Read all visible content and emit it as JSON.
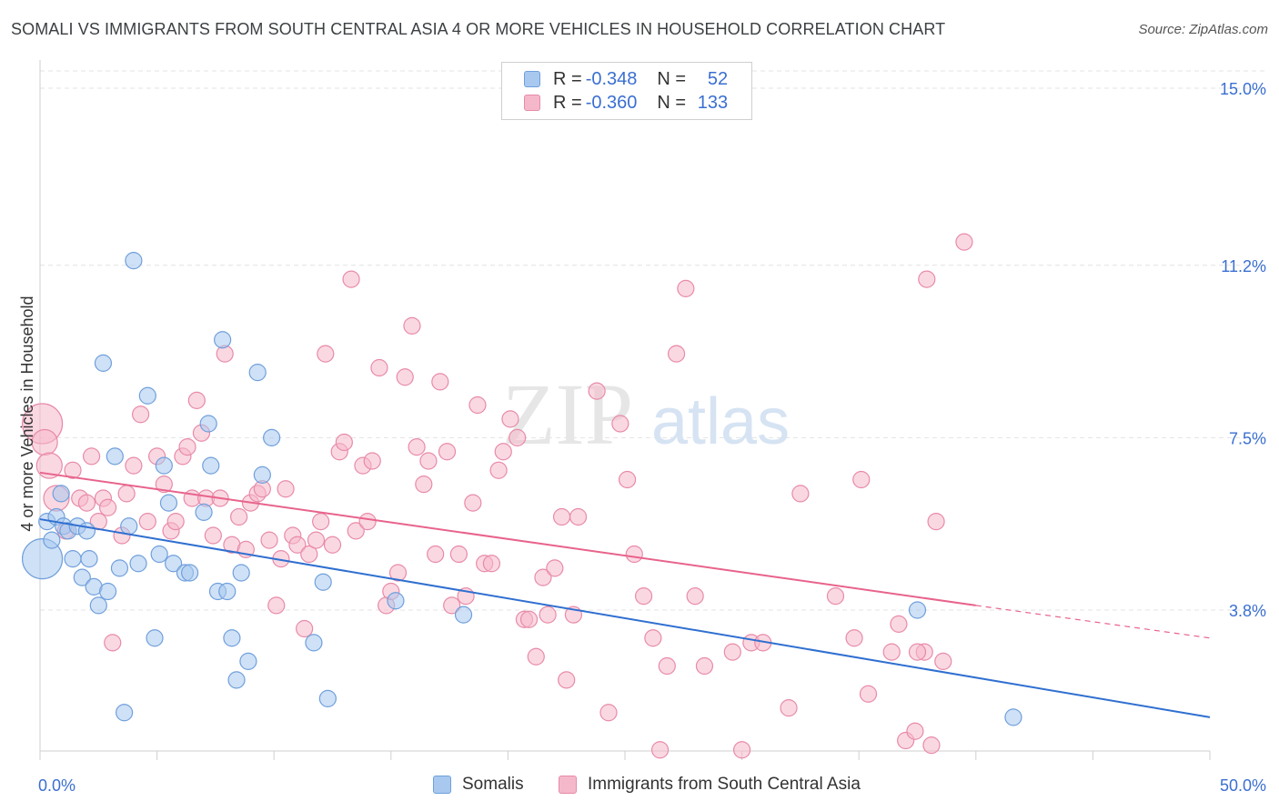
{
  "title": "SOMALI VS IMMIGRANTS FROM SOUTH CENTRAL ASIA 4 OR MORE VEHICLES IN HOUSEHOLD CORRELATION CHART",
  "source": "Source: ZipAtlas.com",
  "legend": {
    "r_label": "R =",
    "n_label": "N =",
    "rows": [
      {
        "r": "-0.348",
        "n": "52",
        "color": "#a8c8ef",
        "border": "#6f9fdc"
      },
      {
        "r": "-0.360",
        "n": "133",
        "color": "#f5b8cb",
        "border": "#e88aa8"
      }
    ]
  },
  "watermark": {
    "zip": "ZIP",
    "atlas": "atlas"
  },
  "colors": {
    "blue_fill": "#a8c8ef",
    "blue_stroke": "#6f9fdc",
    "blue_line": "#2f6fd0",
    "pink_fill": "#f5b8cb",
    "pink_stroke": "#e88aa8",
    "pink_line": "#e8638c",
    "tick_label": "#3a6fd1"
  },
  "chart_data": {
    "type": "scatter",
    "title": "SOMALI VS IMMIGRANTS FROM SOUTH CENTRAL ASIA 4 OR MORE VEHICLES IN HOUSEHOLD CORRELATION CHART",
    "xlabel": "",
    "ylabel": "4 or more Vehicles in Household",
    "xlim": [
      0,
      50
    ],
    "ylim": [
      0.5,
      15.5
    ],
    "x_tick_labels": [
      {
        "value": 0,
        "label": "0.0%"
      },
      {
        "value": 50,
        "label": "50.0%"
      }
    ],
    "y_ticks": [
      {
        "value": 3.8,
        "label": "3.8%"
      },
      {
        "value": 7.5,
        "label": "7.5%"
      },
      {
        "value": 11.2,
        "label": "11.2%"
      },
      {
        "value": 15.0,
        "label": "15.0%"
      }
    ],
    "grid": true,
    "legend_position": "top-center",
    "series": [
      {
        "name": "Somalis",
        "r": -0.348,
        "n": 52,
        "trend": {
          "x0": 0,
          "y0": 5.75,
          "x1": 50,
          "y1": 1.5
        },
        "points": [
          [
            0.1,
            4.9,
            3
          ],
          [
            0.3,
            5.7,
            1
          ],
          [
            0.5,
            5.3,
            1
          ],
          [
            0.7,
            5.8,
            1
          ],
          [
            0.9,
            6.3,
            1
          ],
          [
            1.0,
            5.6,
            1
          ],
          [
            1.2,
            5.5,
            1
          ],
          [
            1.4,
            4.9,
            1
          ],
          [
            1.6,
            5.6,
            1
          ],
          [
            1.8,
            4.5,
            1
          ],
          [
            2.0,
            5.5,
            1
          ],
          [
            2.1,
            4.9,
            1
          ],
          [
            2.3,
            4.3,
            1
          ],
          [
            2.5,
            3.9,
            1
          ],
          [
            2.7,
            9.1,
            1
          ],
          [
            2.9,
            4.2,
            1
          ],
          [
            3.2,
            7.1,
            1
          ],
          [
            3.4,
            4.7,
            1
          ],
          [
            3.6,
            1.6,
            1
          ],
          [
            3.8,
            5.6,
            1
          ],
          [
            4.0,
            11.3,
            1
          ],
          [
            4.2,
            4.8,
            1
          ],
          [
            4.6,
            8.4,
            1
          ],
          [
            4.9,
            3.2,
            1
          ],
          [
            5.1,
            5.0,
            1
          ],
          [
            5.3,
            6.9,
            1
          ],
          [
            5.5,
            6.1,
            1
          ],
          [
            5.7,
            4.8,
            1
          ],
          [
            6.2,
            4.6,
            1
          ],
          [
            6.4,
            4.6,
            1
          ],
          [
            7.0,
            5.9,
            1
          ],
          [
            7.2,
            7.8,
            1
          ],
          [
            7.3,
            6.9,
            1
          ],
          [
            7.6,
            4.2,
            1
          ],
          [
            7.8,
            9.6,
            1
          ],
          [
            8.0,
            4.2,
            1
          ],
          [
            8.2,
            3.2,
            1
          ],
          [
            8.4,
            2.3,
            1
          ],
          [
            8.6,
            4.6,
            1
          ],
          [
            8.9,
            2.7,
            1
          ],
          [
            9.3,
            8.9,
            1
          ],
          [
            9.5,
            6.7,
            1
          ],
          [
            9.9,
            7.5,
            1
          ],
          [
            11.7,
            3.1,
            1
          ],
          [
            12.1,
            4.4,
            1
          ],
          [
            12.3,
            1.9,
            1
          ],
          [
            15.2,
            4.0,
            1
          ],
          [
            18.1,
            3.7,
            1
          ],
          [
            37.5,
            3.8,
            1
          ],
          [
            41.6,
            1.5,
            1
          ]
        ]
      },
      {
        "name": "Immigrants from South Central Asia",
        "r": -0.36,
        "n": 133,
        "trend": {
          "x0": 0,
          "y0": 6.75,
          "x1": 40,
          "y1": 3.9,
          "dash_x1": 50,
          "dash_y1": 3.2
        },
        "points": [
          [
            0.1,
            7.8,
            3
          ],
          [
            0.2,
            7.4,
            2
          ],
          [
            0.4,
            6.9,
            2
          ],
          [
            0.7,
            6.2,
            2
          ],
          [
            1.1,
            5.5,
            1
          ],
          [
            1.4,
            6.8,
            1
          ],
          [
            1.7,
            6.2,
            1
          ],
          [
            2.0,
            6.1,
            1
          ],
          [
            2.2,
            7.1,
            1
          ],
          [
            2.5,
            5.7,
            1
          ],
          [
            2.7,
            6.2,
            1
          ],
          [
            2.9,
            6.0,
            1
          ],
          [
            3.1,
            3.1,
            1
          ],
          [
            3.5,
            5.4,
            1
          ],
          [
            3.7,
            6.3,
            1
          ],
          [
            4.0,
            6.9,
            1
          ],
          [
            4.3,
            8.0,
            1
          ],
          [
            4.6,
            5.7,
            1
          ],
          [
            5.0,
            7.1,
            1
          ],
          [
            5.3,
            6.5,
            1
          ],
          [
            5.6,
            5.5,
            1
          ],
          [
            5.8,
            5.7,
            1
          ],
          [
            6.1,
            7.1,
            1
          ],
          [
            6.3,
            7.3,
            1
          ],
          [
            6.5,
            6.2,
            1
          ],
          [
            6.7,
            8.3,
            1
          ],
          [
            6.9,
            7.6,
            1
          ],
          [
            7.1,
            6.2,
            1
          ],
          [
            7.4,
            5.4,
            1
          ],
          [
            7.7,
            6.2,
            1
          ],
          [
            7.9,
            9.3,
            1
          ],
          [
            8.2,
            5.2,
            1
          ],
          [
            8.5,
            5.8,
            1
          ],
          [
            8.8,
            5.1,
            1
          ],
          [
            9.0,
            6.1,
            1
          ],
          [
            9.3,
            6.3,
            1
          ],
          [
            9.5,
            6.4,
            1
          ],
          [
            9.8,
            5.3,
            1
          ],
          [
            10.1,
            3.9,
            1
          ],
          [
            10.3,
            4.9,
            1
          ],
          [
            10.5,
            6.4,
            1
          ],
          [
            10.8,
            5.4,
            1
          ],
          [
            11.0,
            5.2,
            1
          ],
          [
            11.3,
            3.4,
            1
          ],
          [
            11.5,
            5.0,
            1
          ],
          [
            11.8,
            5.3,
            1
          ],
          [
            12.0,
            5.7,
            1
          ],
          [
            12.2,
            9.3,
            1
          ],
          [
            12.5,
            5.2,
            1
          ],
          [
            12.8,
            7.2,
            1
          ],
          [
            13.0,
            7.4,
            1
          ],
          [
            13.3,
            10.9,
            1
          ],
          [
            13.5,
            5.5,
            1
          ],
          [
            13.8,
            6.9,
            1
          ],
          [
            14.0,
            5.7,
            1
          ],
          [
            14.2,
            7.0,
            1
          ],
          [
            14.5,
            9.0,
            1
          ],
          [
            14.8,
            3.9,
            1
          ],
          [
            15.0,
            4.2,
            1
          ],
          [
            15.3,
            4.6,
            1
          ],
          [
            15.6,
            8.8,
            1
          ],
          [
            15.9,
            9.9,
            1
          ],
          [
            16.1,
            7.3,
            1
          ],
          [
            16.4,
            6.5,
            1
          ],
          [
            16.6,
            7.0,
            1
          ],
          [
            16.9,
            5.0,
            1
          ],
          [
            17.1,
            8.7,
            1
          ],
          [
            17.4,
            7.2,
            1
          ],
          [
            17.6,
            3.9,
            1
          ],
          [
            17.9,
            5.0,
            1
          ],
          [
            18.2,
            4.1,
            1
          ],
          [
            18.5,
            6.1,
            1
          ],
          [
            18.7,
            8.2,
            1
          ],
          [
            19.0,
            4.8,
            1
          ],
          [
            19.3,
            4.8,
            1
          ],
          [
            19.6,
            6.8,
            1
          ],
          [
            19.8,
            7.2,
            1
          ],
          [
            20.1,
            7.9,
            1
          ],
          [
            20.4,
            7.5,
            1
          ],
          [
            20.7,
            3.6,
            1
          ],
          [
            20.9,
            3.6,
            1
          ],
          [
            21.2,
            2.8,
            1
          ],
          [
            21.5,
            4.5,
            1
          ],
          [
            21.7,
            3.7,
            1
          ],
          [
            22.0,
            4.7,
            1
          ],
          [
            22.3,
            5.8,
            1
          ],
          [
            22.5,
            2.3,
            1
          ],
          [
            22.8,
            3.7,
            1
          ],
          [
            23.0,
            5.8,
            1
          ],
          [
            23.8,
            8.5,
            1
          ],
          [
            24.3,
            1.6,
            1
          ],
          [
            24.8,
            7.8,
            1
          ],
          [
            25.1,
            6.6,
            1
          ],
          [
            25.4,
            5.0,
            1
          ],
          [
            25.8,
            4.1,
            1
          ],
          [
            26.2,
            3.2,
            1
          ],
          [
            26.5,
            0.8,
            1
          ],
          [
            26.8,
            2.6,
            1
          ],
          [
            27.2,
            9.3,
            1
          ],
          [
            27.6,
            10.7,
            1
          ],
          [
            28.0,
            4.1,
            1
          ],
          [
            28.4,
            2.6,
            1
          ],
          [
            29.6,
            2.9,
            1
          ],
          [
            30.0,
            0.8,
            1
          ],
          [
            30.4,
            3.1,
            1
          ],
          [
            30.9,
            3.1,
            1
          ],
          [
            32.0,
            1.7,
            1
          ],
          [
            32.5,
            6.3,
            1
          ],
          [
            34.0,
            4.1,
            1
          ],
          [
            34.8,
            3.2,
            1
          ],
          [
            35.1,
            6.6,
            1
          ],
          [
            35.4,
            2.0,
            1
          ],
          [
            36.7,
            3.5,
            1
          ],
          [
            37.0,
            1.0,
            1
          ],
          [
            37.4,
            1.2,
            1
          ],
          [
            37.8,
            2.9,
            1
          ],
          [
            38.1,
            0.9,
            1
          ],
          [
            36.4,
            2.9,
            1
          ],
          [
            37.5,
            2.9,
            1
          ],
          [
            37.9,
            10.9,
            1
          ],
          [
            38.3,
            5.7,
            1
          ],
          [
            38.6,
            2.7,
            1
          ],
          [
            39.5,
            11.7,
            1
          ]
        ]
      }
    ]
  }
}
